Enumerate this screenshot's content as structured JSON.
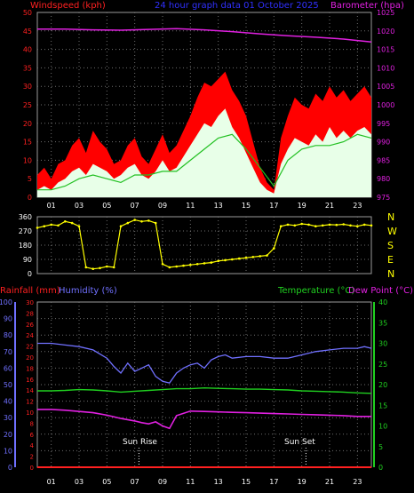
{
  "title": "24 hour graph data   01 October 2025",
  "colors": {
    "windspeed": "#ff2020",
    "gust": "#ff0000",
    "wind_avg": "#e8ffe8",
    "wind_green": "#22c022",
    "barometer": "#e020e0",
    "direction": "#ffff00",
    "rainfall": "#ff2020",
    "humidity": "#7070ff",
    "temperature": "#20d020",
    "dewpoint": "#e020e0",
    "grid": "#6e6e6e",
    "frame": "#9a9a9a"
  },
  "chart_data": [
    {
      "type": "area",
      "left_label": "Windspeed (kph)",
      "right_label": "Barometer (hpa)",
      "left_ticks": [
        "0",
        "5",
        "10",
        "15",
        "20",
        "25",
        "30",
        "35",
        "40",
        "45",
        "50"
      ],
      "right_ticks": [
        "975",
        "980",
        "985",
        "990",
        "995",
        "1000",
        "1005",
        "1010",
        "1015",
        "1020",
        "1025"
      ],
      "x_ticks": [
        "01",
        "03",
        "05",
        "07",
        "09",
        "11",
        "13",
        "15",
        "17",
        "19",
        "21",
        "23"
      ],
      "ylim": [
        0,
        50
      ],
      "ylim_right": [
        975,
        1025
      ],
      "xlim": [
        0,
        24
      ],
      "grid": true,
      "series": [
        {
          "name": "Gust",
          "x": [
            0,
            0.5,
            1,
            1.5,
            2,
            2.5,
            3,
            3.5,
            4,
            4.5,
            5,
            5.5,
            6,
            6.5,
            7,
            7.5,
            8,
            8.5,
            9,
            9.5,
            10,
            10.5,
            11,
            11.5,
            12,
            12.5,
            13,
            13.5,
            14,
            14.5,
            15,
            15.5,
            16,
            16.5,
            17,
            17.5,
            18,
            18.5,
            19,
            19.5,
            20,
            20.5,
            21,
            21.5,
            22,
            22.5,
            23,
            23.5,
            24
          ],
          "values": [
            6,
            8,
            5,
            9,
            10,
            14,
            16,
            12,
            18,
            15,
            13,
            9,
            10,
            14,
            16,
            11,
            9,
            13,
            17,
            12,
            14,
            18,
            22,
            27,
            31,
            30,
            32,
            34,
            29,
            26,
            22,
            15,
            8,
            4,
            2,
            16,
            22,
            27,
            25,
            24,
            28,
            26,
            30,
            27,
            29,
            26,
            28,
            30,
            27
          ]
        },
        {
          "name": "Wind",
          "x": [
            0,
            0.5,
            1,
            1.5,
            2,
            2.5,
            3,
            3.5,
            4,
            4.5,
            5,
            5.5,
            6,
            6.5,
            7,
            7.5,
            8,
            8.5,
            9,
            9.5,
            10,
            10.5,
            11,
            11.5,
            12,
            12.5,
            13,
            13.5,
            14,
            14.5,
            15,
            15.5,
            16,
            16.5,
            17,
            17.5,
            18,
            18.5,
            19,
            19.5,
            20,
            20.5,
            21,
            21.5,
            22,
            22.5,
            23,
            23.5,
            24
          ],
          "values": [
            2,
            3,
            2,
            4,
            5,
            7,
            8,
            6,
            9,
            8,
            7,
            5,
            6,
            8,
            9,
            6,
            5,
            7,
            10,
            7,
            8,
            11,
            14,
            17,
            20,
            19,
            22,
            24,
            19,
            16,
            12,
            8,
            4,
            2,
            1,
            9,
            13,
            16,
            15,
            14,
            17,
            15,
            19,
            16,
            18,
            16,
            18,
            19,
            17
          ]
        },
        {
          "name": "Average",
          "x": [
            0,
            1,
            2,
            3,
            4,
            5,
            6,
            7,
            8,
            9,
            10,
            11,
            12,
            13,
            14,
            15,
            16,
            17,
            18,
            19,
            20,
            21,
            22,
            23,
            24
          ],
          "values": [
            2,
            2,
            3,
            5,
            6,
            5,
            4,
            6,
            6,
            7,
            7,
            10,
            13,
            16,
            17,
            13,
            8,
            3,
            10,
            13,
            14,
            14,
            15,
            17,
            16
          ]
        },
        {
          "name": "Barometer",
          "axis": "right",
          "x": [
            0,
            2,
            4,
            6,
            8,
            10,
            12,
            14,
            16,
            18,
            20,
            22,
            24
          ],
          "values": [
            1020.5,
            1020.5,
            1020.3,
            1020.2,
            1020.4,
            1020.6,
            1020.3,
            1019.8,
            1019.2,
            1018.7,
            1018.3,
            1017.8,
            1017
          ]
        }
      ]
    },
    {
      "type": "scatter",
      "right_labels": [
        "N",
        "W",
        "S",
        "E",
        "N"
      ],
      "left_ticks": [
        "0",
        "90",
        "180",
        "270",
        "360"
      ],
      "ylim": [
        0,
        360
      ],
      "xlim": [
        0,
        24
      ],
      "grid": true,
      "series": [
        {
          "name": "Direction",
          "x": [
            0,
            0.5,
            1,
            1.5,
            2,
            2.5,
            3,
            3.5,
            4,
            4.5,
            5,
            5.5,
            6,
            6.5,
            7,
            7.5,
            8,
            8.5,
            9,
            9.5,
            10,
            10.5,
            11,
            11.5,
            12,
            12.5,
            13,
            13.5,
            14,
            14.5,
            15,
            15.5,
            16,
            16.5,
            17,
            17.5,
            18,
            18.5,
            19,
            19.5,
            20,
            20.5,
            21,
            21.5,
            22,
            22.5,
            23,
            23.5,
            24
          ],
          "values": [
            290,
            300,
            310,
            305,
            330,
            320,
            300,
            40,
            30,
            35,
            45,
            40,
            300,
            320,
            340,
            330,
            335,
            320,
            60,
            40,
            45,
            50,
            55,
            60,
            65,
            70,
            80,
            85,
            90,
            95,
            100,
            105,
            110,
            115,
            160,
            300,
            310,
            305,
            315,
            310,
            300,
            305,
            310,
            308,
            312,
            305,
            300,
            310,
            305
          ]
        }
      ]
    },
    {
      "type": "line",
      "labels_top": [
        "Rainfall (mm)",
        "Humidity (%)",
        "Temperature (°C)",
        "Dew Point (°C)"
      ],
      "rain_ticks": [
        "0",
        "2",
        "4",
        "6",
        "8",
        "10",
        "12",
        "14",
        "16",
        "18",
        "20",
        "22",
        "24",
        "26",
        "28",
        "30"
      ],
      "humidity_ticks": [
        "0",
        "10",
        "20",
        "30",
        "40",
        "50",
        "60",
        "70",
        "80",
        "90",
        "100"
      ],
      "temp_ticks": [
        "0",
        "5",
        "10",
        "15",
        "20",
        "25",
        "30",
        "35",
        "40"
      ],
      "x_ticks": [
        "01",
        "03",
        "05",
        "07",
        "09",
        "11",
        "13",
        "15",
        "17",
        "19",
        "21",
        "23"
      ],
      "annotations": [
        "Sun Rise",
        "Sun Set"
      ],
      "annotation_x": [
        7.3,
        19.3
      ],
      "xlim": [
        0,
        24
      ],
      "ylim_humidity": [
        0,
        100
      ],
      "ylim_temp": [
        0,
        40
      ],
      "ylim_rain": [
        0,
        30
      ],
      "grid": true,
      "series": [
        {
          "name": "Humidity",
          "x": [
            0,
            1,
            2,
            3,
            4,
            5,
            5.5,
            6,
            6.5,
            7,
            7.5,
            8,
            8.5,
            9,
            9.5,
            10,
            10.5,
            11,
            11.5,
            12,
            12.5,
            13,
            13.5,
            14,
            15,
            16,
            17,
            18,
            19,
            20,
            21,
            22,
            23,
            23.5,
            24
          ],
          "values": [
            75,
            75,
            74,
            73,
            71,
            66,
            61,
            57,
            63,
            58,
            60,
            62,
            55,
            52,
            51,
            57,
            60,
            62,
            63,
            60,
            65,
            67,
            68,
            66,
            67,
            67,
            66,
            66,
            68,
            70,
            71,
            72,
            72,
            73,
            72
          ]
        },
        {
          "name": "Temperature",
          "x": [
            0,
            1,
            2,
            3,
            4,
            5,
            6,
            7,
            8,
            9,
            10,
            11,
            12,
            13,
            14,
            15,
            16,
            17,
            18,
            19,
            20,
            21,
            22,
            23,
            24
          ],
          "values": [
            18.5,
            18.5,
            18.6,
            18.8,
            18.7,
            18.5,
            18.2,
            18.4,
            18.6,
            18.8,
            19.0,
            19.0,
            19.2,
            19.1,
            19.0,
            18.9,
            18.9,
            18.8,
            18.7,
            18.5,
            18.4,
            18.3,
            18.2,
            18.0,
            17.9
          ]
        },
        {
          "name": "Dew Point",
          "x": [
            0,
            1,
            2,
            3,
            4,
            5,
            6,
            7,
            7.5,
            8,
            8.5,
            9,
            9.5,
            10,
            11,
            12,
            13,
            14,
            15,
            16,
            17,
            18,
            19,
            20,
            21,
            22,
            23,
            24
          ],
          "values": [
            14,
            14,
            13.8,
            13.5,
            13.2,
            12.6,
            11.8,
            11.2,
            10.8,
            10.5,
            11,
            10,
            9.4,
            12.5,
            13.6,
            13.5,
            13.4,
            13.3,
            13.2,
            13.1,
            13.0,
            12.9,
            12.8,
            12.7,
            12.6,
            12.5,
            12.3,
            12.3
          ]
        },
        {
          "name": "Rainfall",
          "x": [
            0,
            24
          ],
          "values": [
            0,
            0
          ]
        }
      ]
    }
  ]
}
